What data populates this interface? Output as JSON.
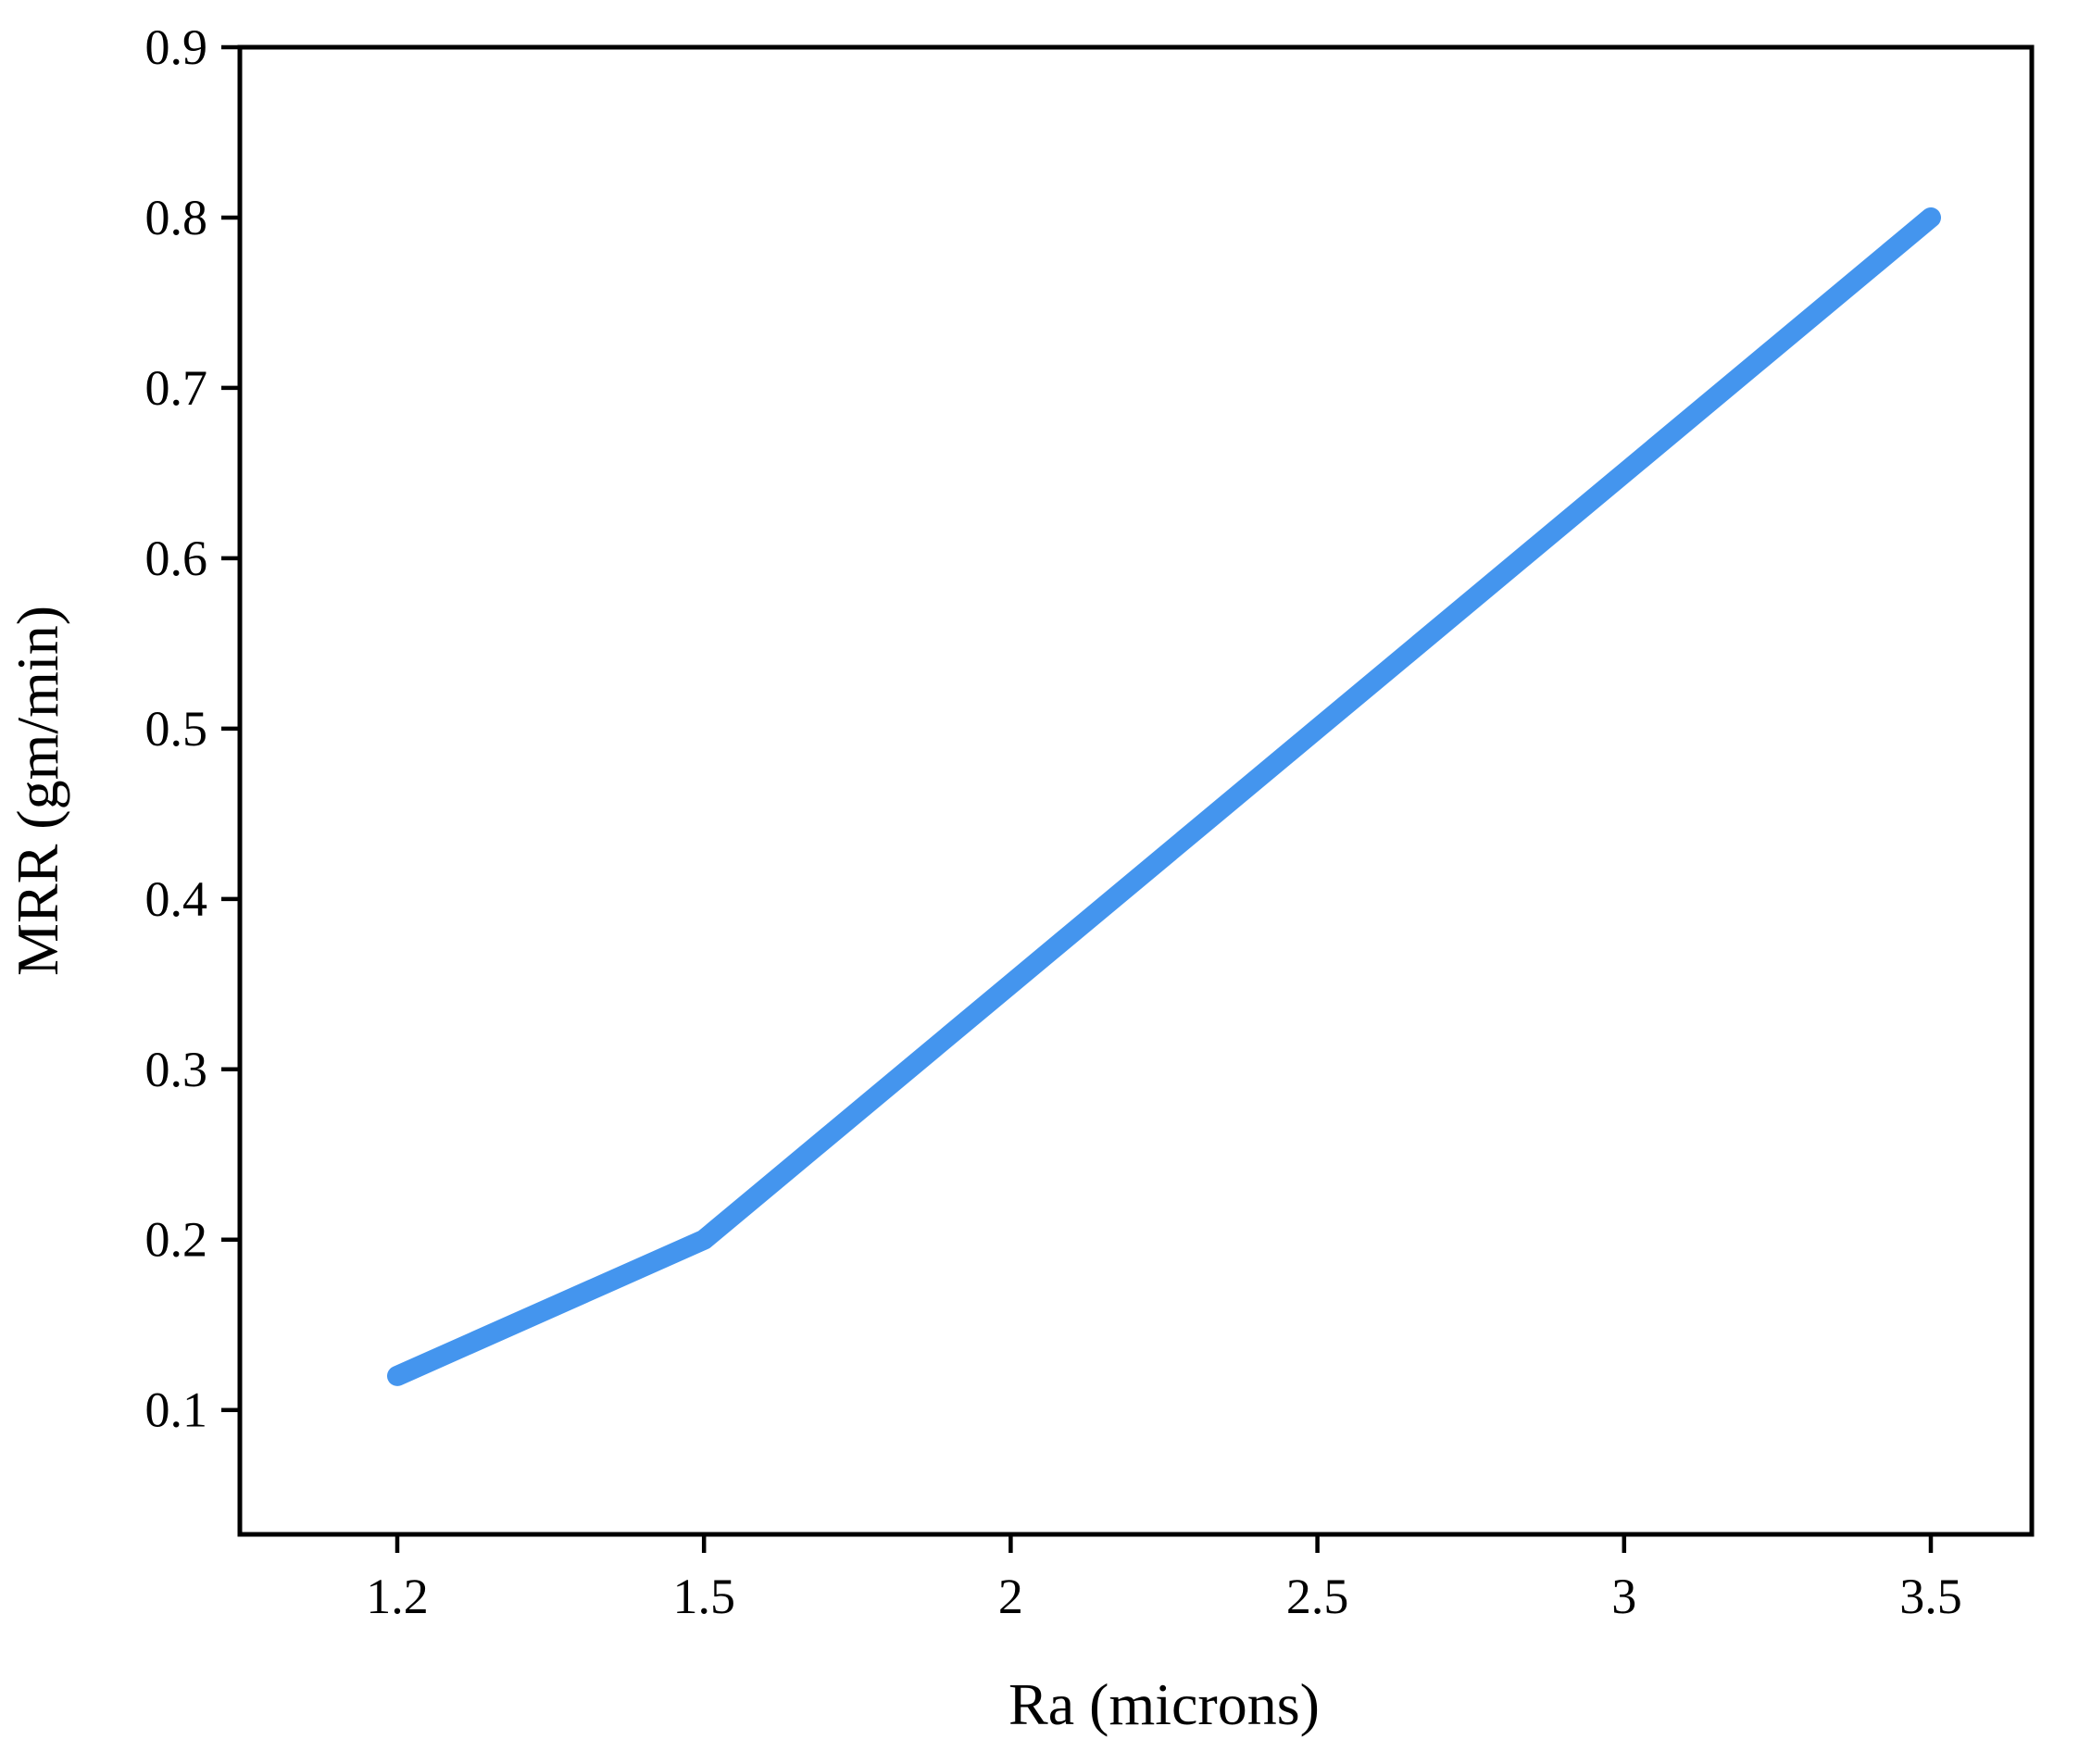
{
  "figure": {
    "background_color": "#ffffff",
    "axis_color": "#000000"
  },
  "chart_data": {
    "type": "line",
    "x": [
      1.2,
      1.5,
      2,
      2.5,
      3,
      3.5
    ],
    "x_tick_labels": [
      "1.2",
      "1.5",
      "2",
      "2.5",
      "3",
      "3.5"
    ],
    "series": [
      {
        "name": "MRR",
        "values": [
          0.12,
          0.2,
          0.35,
          0.5,
          0.65,
          0.8
        ],
        "color": "#4495ee",
        "line_width": 22
      }
    ],
    "xlabel": "Ra (microns)",
    "ylabel": "MRR (gm/min)",
    "y_ticks": [
      0.1,
      0.2,
      0.3,
      0.4,
      0.5,
      0.6,
      0.7,
      0.8,
      0.9
    ],
    "y_tick_labels": [
      "0.1",
      "0.2",
      "0.3",
      "0.4",
      "0.5",
      "0.6",
      "0.7",
      "0.8",
      "0.9"
    ],
    "ylim": [
      0.027,
      0.9
    ],
    "x_spacing": "categorical-even",
    "grid": false,
    "legend": false
  }
}
